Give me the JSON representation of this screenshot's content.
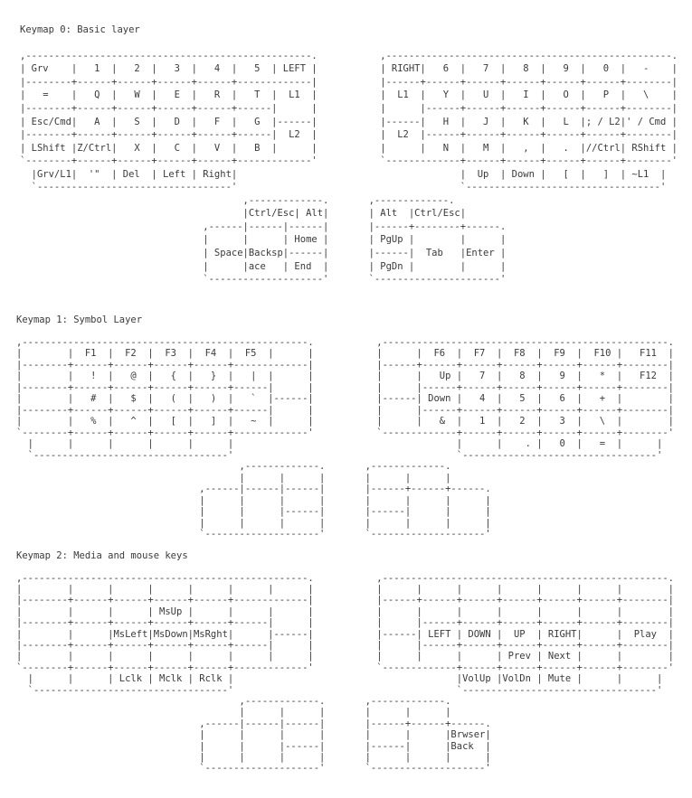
{
  "colors": {
    "text": "#3a3a3a",
    "background": "#ffffff"
  },
  "layers": [
    {
      "title": "Keymap 0: Basic layer",
      "left_hand": [
        ",--------------------------------------------------.",
        "| Grv    |   1  |   2  |   3  |   4  |   5  | LEFT |",
        "|--------+------+------+------+------+-------------|",
        "|   =    |   Q  |   W  |   E  |   R  |   T  |  L1  |",
        "|--------+------+------+------+------+------|      |",
        "| Esc/Cmd|   A  |   S  |   D  |   F  |   G  |------|",
        "|--------+------+------+------+------+------|  L2  |",
        "| LShift |Z/Ctrl|   X  |   C  |   V  |   B  |      |",
        "`--------+------+------+------+------+-------------'",
        "  |Grv/L1|  '\"  | Del  | Left | Right|",
        "  `----------------------------------'"
      ],
      "right_hand": [
        ",--------------------------------------------------.",
        "| RIGHT|   6  |   7  |   8  |   9  |   0  |   -    |",
        "|------+------+------+------+------+------+--------|",
        "|  L1  |   Y  |   U  |   I  |   O  |   P  |   \\    |",
        "|      |------+------+------+------+------+--------|",
        "|------|   H  |   J  |   K  |   L  |; / L2|' / Cmd |",
        "|  L2  |------+------+------+------+------+--------|",
        "|      |   N  |   M  |   ,  |   .  |//Ctrl| RShift |",
        "`-------------+------+------+------+------+--------'",
        "              |  Up  | Down |   [  |   ]  | ~L1  |",
        "              `----------------------------------'"
      ],
      "left_thumb": [
        "       ,-------------.",
        "       |Ctrl/Esc| Alt|",
        ",------|------|------|",
        "|      |      | Home |",
        "| Space|Backsp|------|",
        "|      |ace   | End  |",
        "`--------------------'"
      ],
      "right_thumb": [
        ",-------------.",
        "| Alt  |Ctrl/Esc|",
        "|------+--------+------.",
        "| PgUp |        |      |",
        "|------|  Tab   |Enter |",
        "| PgDn |        |      |",
        "`----------------------'"
      ]
    },
    {
      "title": "Keymap 1: Symbol Layer",
      "left_hand": [
        ",--------------------------------------------------.",
        "|        |  F1  |  F2  |  F3  |  F4  |  F5  |      |",
        "|--------+------+------+------+------+-------------|",
        "|        |   !  |   @  |   {  |   }  |   |  |      |",
        "|--------+------+------+------+------+------|      |",
        "|        |   #  |   $  |   (  |   )  |   `  |------|",
        "|--------+------+------+------+------+------|      |",
        "|        |   %  |   ^  |   [  |   ]  |   ~  |      |",
        "`--------+------+------+------+------+-------------'",
        "  |      |      |      |      |      |",
        "  `----------------------------------'"
      ],
      "right_hand": [
        ",--------------------------------------------------.",
        "|      |  F6  |  F7  |  F8  |  F9  |  F10 |   F11  |",
        "|------+------+------+------+------+------+--------|",
        "|      |   Up |   7  |   8  |   9  |   *  |   F12  |",
        "|      |------+------+------+------+------+--------|",
        "|------| Down |   4  |   5  |   6  |   +  |        |",
        "|      |------+------+------+------+------+--------|",
        "|      |   &  |   1  |   2  |   3  |   \\  |        |",
        "`-------------+------+------+------+------+--------'",
        "              |      |    . |   0  |   =  |      |",
        "              `----------------------------------'"
      ],
      "left_thumb": [
        "       ,-------------.",
        "       |      |      |",
        ",------|------|------|",
        "|      |      |      |",
        "|      |      |------|",
        "|      |      |      |",
        "`--------------------'"
      ],
      "right_thumb": [
        ",-------------.",
        "|      |      |",
        "|------+------+------.",
        "|      |      |      |",
        "|------|      |      |",
        "|      |      |      |",
        "`--------------------'"
      ]
    },
    {
      "title": "Keymap 2: Media and mouse keys",
      "left_hand": [
        ",--------------------------------------------------.",
        "|        |      |      |      |      |      |      |",
        "|--------+------+------+------+------+-------------|",
        "|        |      |      | MsUp |      |      |      |",
        "|--------+------+------+------+------+------|      |",
        "|        |      |MsLeft|MsDown|MsRght|      |------|",
        "|--------+------+------+------+------+------|      |",
        "|        |      |      |      |      |      |      |",
        "`--------+------+------+------+------+-------------'",
        "  |      |      | Lclk | Mclk | Rclk |",
        "  `----------------------------------'"
      ],
      "right_hand": [
        ",--------------------------------------------------.",
        "|      |      |      |      |      |      |        |",
        "|------+------+------+------+------+------+--------|",
        "|      |      |      |      |      |      |        |",
        "|      |------+------+------+------+------+--------|",
        "|------| LEFT | DOWN |  UP  | RIGHT|      |  Play  |",
        "|      |------+------+------+------+------+--------|",
        "|      |      |      | Prev | Next |      |        |",
        "`-------------+------+------+------+------+--------'",
        "              |VolUp |VolDn | Mute |      |      |",
        "              `----------------------------------'"
      ],
      "left_thumb": [
        "       ,-------------.",
        "       |      |      |",
        ",------|------|------|",
        "|      |      |      |",
        "|      |      |------|",
        "|      |      |      |",
        "`--------------------'"
      ],
      "right_thumb": [
        ",-------------.",
        "|      |      |",
        "|------+------+------.",
        "|      |      |Brwser|",
        "|------|      |Back  |",
        "|      |      |      |",
        "`--------------------'"
      ]
    }
  ]
}
